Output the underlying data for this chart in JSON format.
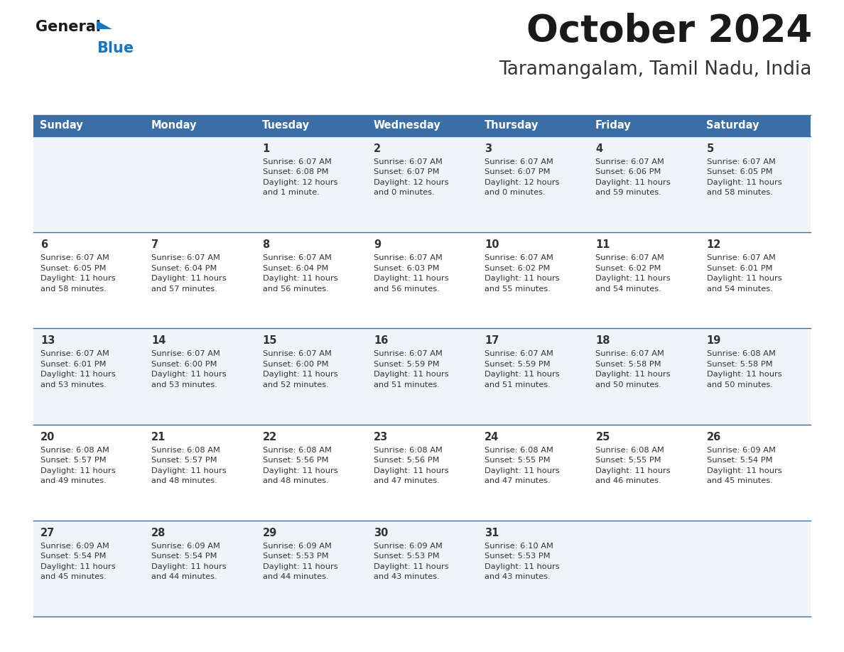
{
  "title": "October 2024",
  "subtitle": "Taramangalam, Tamil Nadu, India",
  "header_bg": "#3b6ea5",
  "header_text_color": "#ffffff",
  "cell_bg_row0": "#f0f4f8",
  "cell_bg_row1": "#ffffff",
  "border_color": "#3b6ea5",
  "days_of_week": [
    "Sunday",
    "Monday",
    "Tuesday",
    "Wednesday",
    "Thursday",
    "Friday",
    "Saturday"
  ],
  "title_color": "#1a1a1a",
  "subtitle_color": "#333333",
  "text_color": "#333333",
  "general_text_color": "#1a1a1a",
  "blue_text_color": "#1a75bb",
  "triangle_color": "#1a75bb",
  "calendar": [
    [
      {
        "day": "",
        "sunrise": "",
        "sunset": "",
        "daylight": ""
      },
      {
        "day": "",
        "sunrise": "",
        "sunset": "",
        "daylight": ""
      },
      {
        "day": "1",
        "sunrise": "6:07 AM",
        "sunset": "6:08 PM",
        "daylight": "12 hours and 1 minute."
      },
      {
        "day": "2",
        "sunrise": "6:07 AM",
        "sunset": "6:07 PM",
        "daylight": "12 hours and 0 minutes."
      },
      {
        "day": "3",
        "sunrise": "6:07 AM",
        "sunset": "6:07 PM",
        "daylight": "12 hours and 0 minutes."
      },
      {
        "day": "4",
        "sunrise": "6:07 AM",
        "sunset": "6:06 PM",
        "daylight": "11 hours and 59 minutes."
      },
      {
        "day": "5",
        "sunrise": "6:07 AM",
        "sunset": "6:05 PM",
        "daylight": "11 hours and 58 minutes."
      }
    ],
    [
      {
        "day": "6",
        "sunrise": "6:07 AM",
        "sunset": "6:05 PM",
        "daylight": "11 hours and 58 minutes."
      },
      {
        "day": "7",
        "sunrise": "6:07 AM",
        "sunset": "6:04 PM",
        "daylight": "11 hours and 57 minutes."
      },
      {
        "day": "8",
        "sunrise": "6:07 AM",
        "sunset": "6:04 PM",
        "daylight": "11 hours and 56 minutes."
      },
      {
        "day": "9",
        "sunrise": "6:07 AM",
        "sunset": "6:03 PM",
        "daylight": "11 hours and 56 minutes."
      },
      {
        "day": "10",
        "sunrise": "6:07 AM",
        "sunset": "6:02 PM",
        "daylight": "11 hours and 55 minutes."
      },
      {
        "day": "11",
        "sunrise": "6:07 AM",
        "sunset": "6:02 PM",
        "daylight": "11 hours and 54 minutes."
      },
      {
        "day": "12",
        "sunrise": "6:07 AM",
        "sunset": "6:01 PM",
        "daylight": "11 hours and 54 minutes."
      }
    ],
    [
      {
        "day": "13",
        "sunrise": "6:07 AM",
        "sunset": "6:01 PM",
        "daylight": "11 hours and 53 minutes."
      },
      {
        "day": "14",
        "sunrise": "6:07 AM",
        "sunset": "6:00 PM",
        "daylight": "11 hours and 53 minutes."
      },
      {
        "day": "15",
        "sunrise": "6:07 AM",
        "sunset": "6:00 PM",
        "daylight": "11 hours and 52 minutes."
      },
      {
        "day": "16",
        "sunrise": "6:07 AM",
        "sunset": "5:59 PM",
        "daylight": "11 hours and 51 minutes."
      },
      {
        "day": "17",
        "sunrise": "6:07 AM",
        "sunset": "5:59 PM",
        "daylight": "11 hours and 51 minutes."
      },
      {
        "day": "18",
        "sunrise": "6:07 AM",
        "sunset": "5:58 PM",
        "daylight": "11 hours and 50 minutes."
      },
      {
        "day": "19",
        "sunrise": "6:08 AM",
        "sunset": "5:58 PM",
        "daylight": "11 hours and 50 minutes."
      }
    ],
    [
      {
        "day": "20",
        "sunrise": "6:08 AM",
        "sunset": "5:57 PM",
        "daylight": "11 hours and 49 minutes."
      },
      {
        "day": "21",
        "sunrise": "6:08 AM",
        "sunset": "5:57 PM",
        "daylight": "11 hours and 48 minutes."
      },
      {
        "day": "22",
        "sunrise": "6:08 AM",
        "sunset": "5:56 PM",
        "daylight": "11 hours and 48 minutes."
      },
      {
        "day": "23",
        "sunrise": "6:08 AM",
        "sunset": "5:56 PM",
        "daylight": "11 hours and 47 minutes."
      },
      {
        "day": "24",
        "sunrise": "6:08 AM",
        "sunset": "5:55 PM",
        "daylight": "11 hours and 47 minutes."
      },
      {
        "day": "25",
        "sunrise": "6:08 AM",
        "sunset": "5:55 PM",
        "daylight": "11 hours and 46 minutes."
      },
      {
        "day": "26",
        "sunrise": "6:09 AM",
        "sunset": "5:54 PM",
        "daylight": "11 hours and 45 minutes."
      }
    ],
    [
      {
        "day": "27",
        "sunrise": "6:09 AM",
        "sunset": "5:54 PM",
        "daylight": "11 hours and 45 minutes."
      },
      {
        "day": "28",
        "sunrise": "6:09 AM",
        "sunset": "5:54 PM",
        "daylight": "11 hours and 44 minutes."
      },
      {
        "day": "29",
        "sunrise": "6:09 AM",
        "sunset": "5:53 PM",
        "daylight": "11 hours and 44 minutes."
      },
      {
        "day": "30",
        "sunrise": "6:09 AM",
        "sunset": "5:53 PM",
        "daylight": "11 hours and 43 minutes."
      },
      {
        "day": "31",
        "sunrise": "6:10 AM",
        "sunset": "5:53 PM",
        "daylight": "11 hours and 43 minutes."
      },
      {
        "day": "",
        "sunrise": "",
        "sunset": "",
        "daylight": ""
      },
      {
        "day": "",
        "sunrise": "",
        "sunset": "",
        "daylight": ""
      }
    ]
  ]
}
